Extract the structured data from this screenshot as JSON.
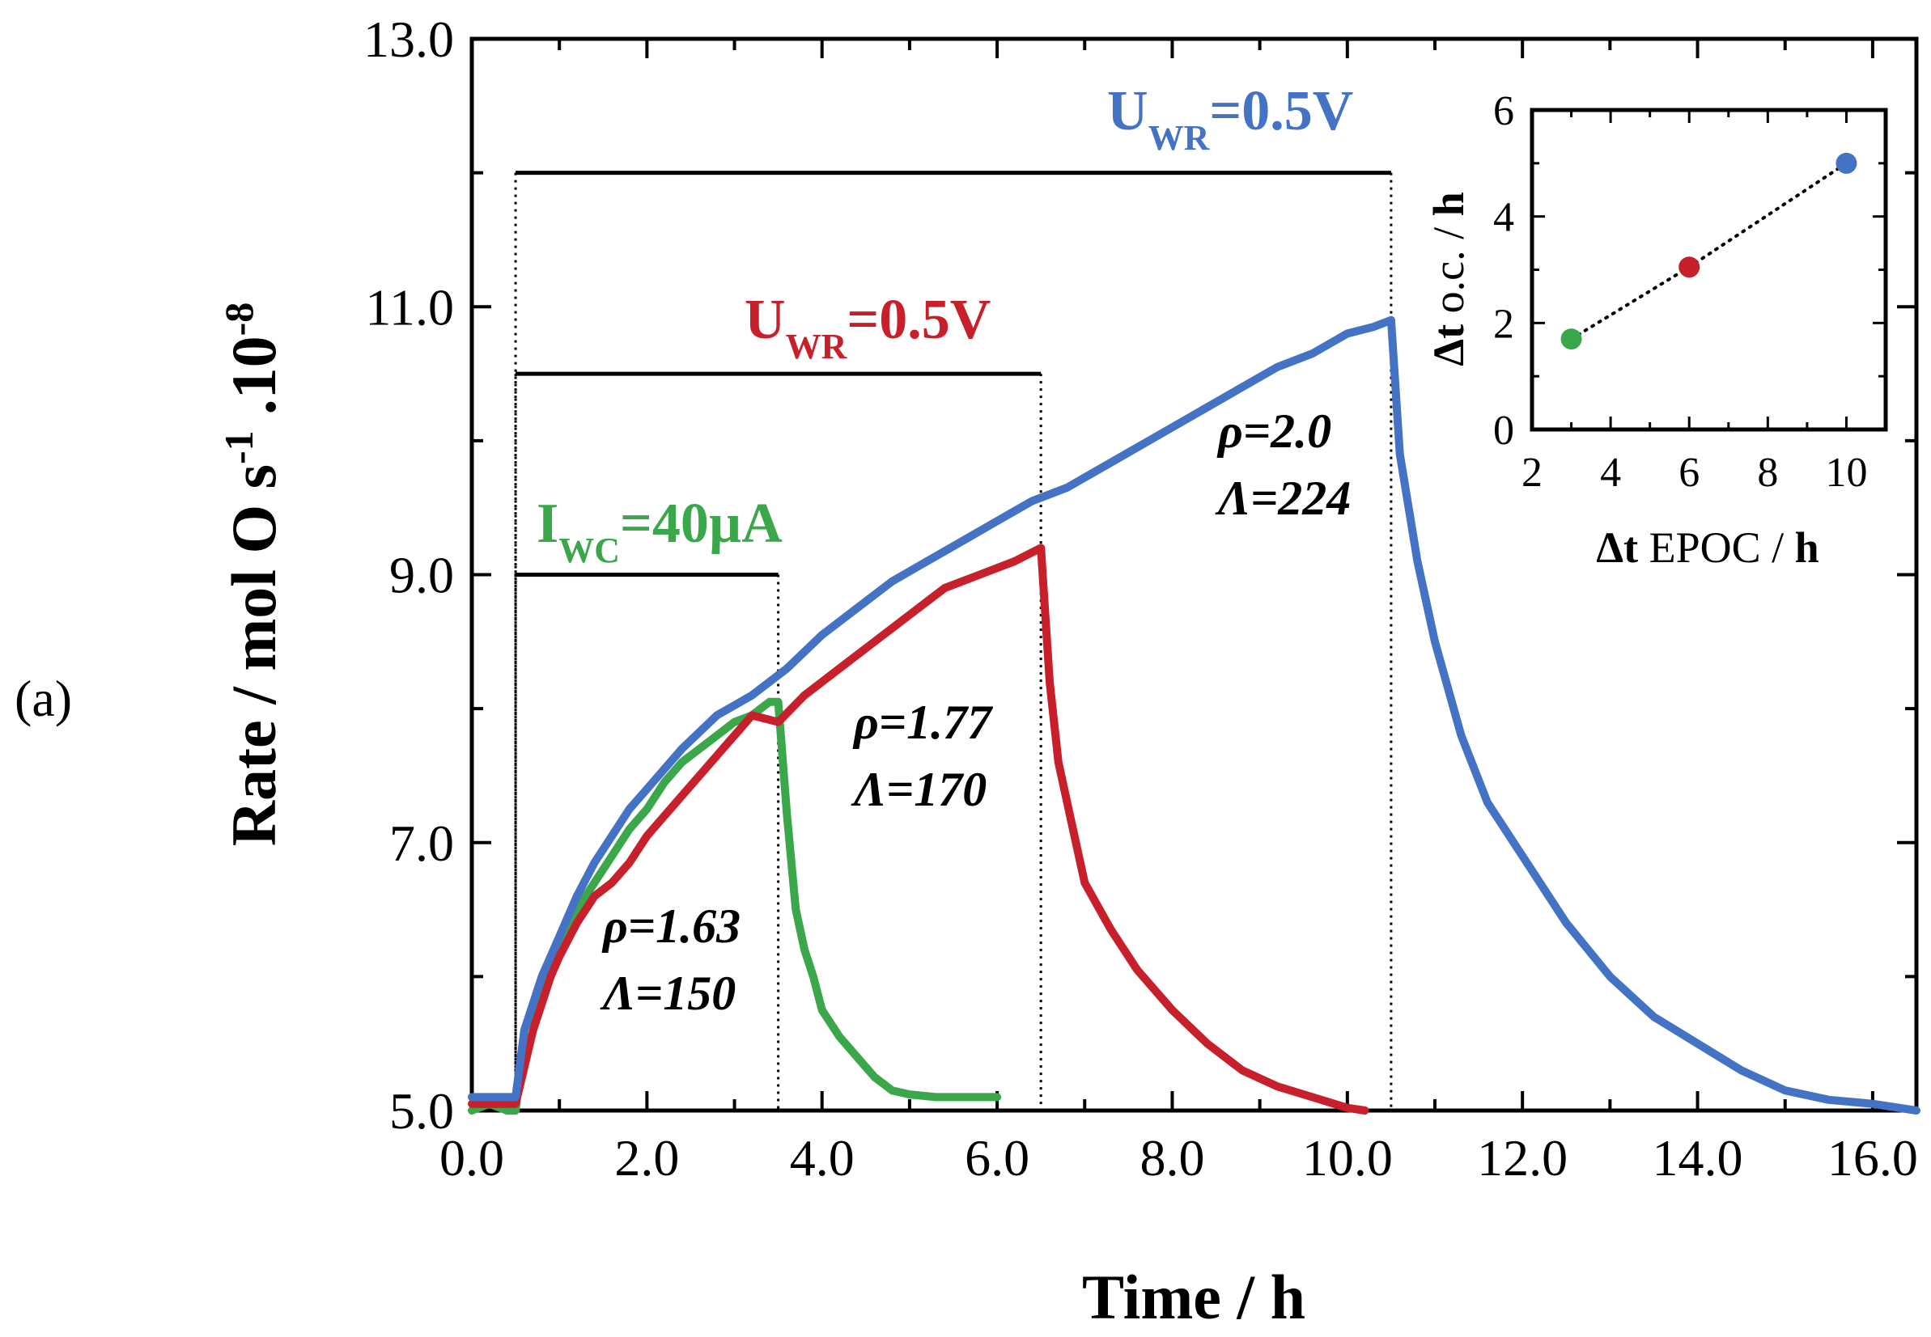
{
  "panel_label": "(a)",
  "chart_data": [
    {
      "type": "line",
      "title": "",
      "xlabel": "Time / h",
      "ylabel": "Rate / mol O s",
      "ylabel_exp1": "-1",
      "ylabel_mid": " .10",
      "ylabel_exp2": "-8",
      "xlim": [
        0,
        16.5
      ],
      "ylim": [
        5,
        13
      ],
      "x_ticks": [
        "0.0",
        "2.0",
        "4.0",
        "6.0",
        "8.0",
        "10.0",
        "12.0",
        "14.0",
        "16.0"
      ],
      "y_ticks": [
        "5.0",
        "7.0",
        "9.0",
        "11.0",
        "13.0"
      ],
      "colors": {
        "green": "#3aa84a",
        "red": "#c8202a",
        "blue": "#4472c4",
        "black": "#000000"
      },
      "series": [
        {
          "name": "green",
          "label_main": "I",
          "label_sub": "WC",
          "label_rest": "=40µA",
          "color": "#3aa84a",
          "x": [
            0,
            0.2,
            0.4,
            0.5,
            0.6,
            0.8,
            1.0,
            1.2,
            1.4,
            1.6,
            1.8,
            2.0,
            2.2,
            2.4,
            2.6,
            2.8,
            3.0,
            3.2,
            3.4,
            3.5,
            3.6,
            3.7,
            3.8,
            3.9,
            4.0,
            4.2,
            4.4,
            4.6,
            4.8,
            5.0,
            5.3,
            5.6,
            6.0
          ],
          "y": [
            5.0,
            5.05,
            5.0,
            5.0,
            5.6,
            5.95,
            6.2,
            6.5,
            6.7,
            6.9,
            7.1,
            7.25,
            7.45,
            7.6,
            7.7,
            7.8,
            7.9,
            7.95,
            8.05,
            8.05,
            7.2,
            6.5,
            6.2,
            6.0,
            5.75,
            5.55,
            5.4,
            5.25,
            5.15,
            5.12,
            5.1,
            5.1,
            5.1
          ]
        },
        {
          "name": "red",
          "label_main": "U",
          "label_sub": "WR",
          "label_rest": "=0.5V",
          "color": "#c8202a",
          "x": [
            0,
            0.3,
            0.5,
            0.7,
            0.9,
            1.0,
            1.2,
            1.4,
            1.6,
            1.8,
            2.0,
            2.4,
            2.8,
            3.2,
            3.5,
            3.8,
            4.2,
            4.6,
            5.0,
            5.4,
            5.8,
            6.2,
            6.5,
            6.6,
            6.7,
            6.85,
            7.0,
            7.3,
            7.6,
            8.0,
            8.4,
            8.8,
            9.2,
            9.6,
            10.0,
            10.2
          ],
          "y": [
            5.05,
            5.05,
            5.05,
            5.6,
            6.0,
            6.15,
            6.4,
            6.6,
            6.7,
            6.85,
            7.05,
            7.35,
            7.65,
            7.95,
            7.9,
            8.1,
            8.3,
            8.5,
            8.7,
            8.9,
            9.0,
            9.1,
            9.2,
            8.2,
            7.6,
            7.15,
            6.7,
            6.35,
            6.05,
            5.75,
            5.5,
            5.3,
            5.18,
            5.1,
            5.02,
            5.0
          ]
        },
        {
          "name": "blue",
          "label_main": "U",
          "label_sub": "WR",
          "label_rest": "=0.5V",
          "color": "#4472c4",
          "x": [
            0,
            0.5,
            0.6,
            0.8,
            1.0,
            1.2,
            1.4,
            1.6,
            1.8,
            2.0,
            2.4,
            2.8,
            3.2,
            3.6,
            4.0,
            4.4,
            4.8,
            5.2,
            5.6,
            6.0,
            6.4,
            6.8,
            7.2,
            7.6,
            8.0,
            8.4,
            8.8,
            9.2,
            9.6,
            10.0,
            10.3,
            10.5,
            10.6,
            10.8,
            11.0,
            11.3,
            11.6,
            12.0,
            12.5,
            13.0,
            13.5,
            14.0,
            14.5,
            15.0,
            15.5,
            16.0,
            16.5
          ],
          "y": [
            5.1,
            5.1,
            5.6,
            6.0,
            6.3,
            6.6,
            6.85,
            7.05,
            7.25,
            7.4,
            7.7,
            7.95,
            8.1,
            8.3,
            8.55,
            8.75,
            8.95,
            9.1,
            9.25,
            9.4,
            9.55,
            9.65,
            9.8,
            9.95,
            10.1,
            10.25,
            10.4,
            10.55,
            10.65,
            10.8,
            10.85,
            10.9,
            9.9,
            9.1,
            8.5,
            7.8,
            7.3,
            6.9,
            6.4,
            6.0,
            5.7,
            5.5,
            5.3,
            5.15,
            5.08,
            5.05,
            5.0
          ]
        }
      ],
      "brackets": [
        {
          "color_key": "green",
          "x_start": 0.5,
          "x_end": 3.5,
          "y": 9.0
        },
        {
          "color_key": "red",
          "x_start": 0.5,
          "x_end": 6.5,
          "y": 10.5
        },
        {
          "color_key": "blue",
          "x_start": 0.5,
          "x_end": 10.5,
          "y": 12.0
        }
      ],
      "annotations": [
        {
          "rho": "ρ=1.63",
          "lambda": "Λ=150"
        },
        {
          "rho": "ρ=1.77",
          "lambda": "Λ=170"
        },
        {
          "rho": "ρ=2.0",
          "lambda": "Λ=224"
        }
      ]
    },
    {
      "type": "scatter",
      "title": "inset",
      "xlabel_bold": "Δt",
      "xlabel_rest": " EPOC / ",
      "xlabel_unit": "h",
      "ylabel_bold": "Δt",
      "ylabel_rest": " o.c. / ",
      "ylabel_unit": "h",
      "xlim": [
        2,
        11
      ],
      "ylim": [
        0,
        6
      ],
      "x_ticks": [
        "2",
        "4",
        "6",
        "8",
        "10"
      ],
      "y_ticks": [
        "0",
        "2",
        "4",
        "6"
      ],
      "points": [
        {
          "x": 3,
          "y": 1.7,
          "color": "#3aa84a"
        },
        {
          "x": 6,
          "y": 3.05,
          "color": "#c8202a"
        },
        {
          "x": 10,
          "y": 5.0,
          "color": "#4472c4"
        }
      ]
    }
  ]
}
